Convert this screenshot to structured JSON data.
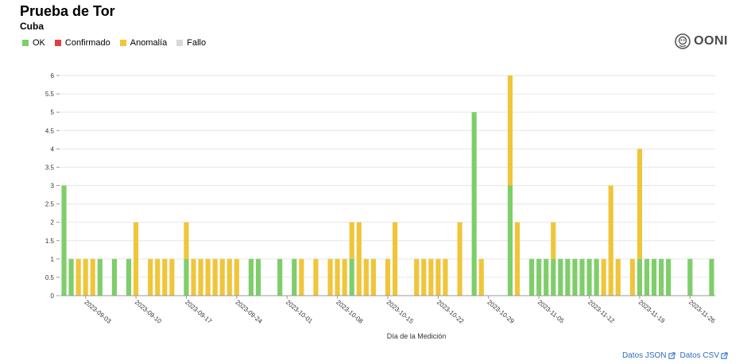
{
  "header": {
    "title": "Prueba de Tor",
    "subtitle": "Cuba"
  },
  "legend": [
    {
      "label": "OK",
      "color": "#7ece6a"
    },
    {
      "label": "Confirmado",
      "color": "#e0403c"
    },
    {
      "label": "Anomalía",
      "color": "#f0c53a"
    },
    {
      "label": "Fallo",
      "color": "#d8d8d8"
    }
  ],
  "logo": {
    "text": "OONI",
    "icon": "ooni-logo-icon"
  },
  "footer": {
    "json_link": "Datos JSON",
    "csv_link": "Datos CSV",
    "icon": "external-link-icon"
  },
  "chart_data": {
    "type": "bar",
    "stacked": true,
    "xlabel": "Día de la Medición",
    "ylabel": "",
    "ylim": [
      0,
      6
    ],
    "yticks": [
      0,
      0.5,
      1,
      1.5,
      2,
      2.5,
      3,
      3.5,
      4,
      4.5,
      5,
      5.5,
      6
    ],
    "grid": true,
    "x_start": "2023-08-31",
    "x_tick_labels": [
      "2023-09-03",
      "2023-09-10",
      "2023-09-17",
      "2023-09-24",
      "2023-10-01",
      "2023-10-08",
      "2023-10-15",
      "2023-10-22",
      "2023-10-29",
      "2023-11-05",
      "2023-11-12",
      "2023-11-19",
      "2023-11-26"
    ],
    "series": [
      {
        "name": "OK",
        "color": "#7ece6a",
        "values": [
          3,
          1,
          0,
          0,
          0,
          1,
          0,
          1,
          0,
          1,
          0,
          0,
          0,
          0,
          0,
          0,
          0,
          1,
          0,
          0,
          0,
          0,
          0,
          0,
          0,
          0,
          1,
          1,
          0,
          0,
          1,
          0,
          1,
          0,
          0,
          0,
          0,
          0,
          0,
          0,
          1,
          0,
          0,
          0,
          0,
          0,
          0,
          0,
          0,
          0,
          0,
          0,
          0,
          0,
          0,
          0,
          0,
          5,
          0,
          0,
          0,
          0,
          3,
          0,
          0,
          1,
          1,
          1,
          1,
          1,
          1,
          1,
          1,
          1,
          1,
          0,
          0,
          0,
          0,
          0,
          1,
          1,
          1,
          1,
          1,
          0,
          0,
          1,
          0,
          0,
          1
        ]
      },
      {
        "name": "Confirmado",
        "color": "#e0403c",
        "values": [
          0,
          0,
          0,
          0,
          0,
          0,
          0,
          0,
          0,
          0,
          0,
          0,
          0,
          0,
          0,
          0,
          0,
          0,
          0,
          0,
          0,
          0,
          0,
          0,
          0,
          0,
          0,
          0,
          0,
          0,
          0,
          0,
          0,
          0,
          0,
          0,
          0,
          0,
          0,
          0,
          0,
          0,
          0,
          0,
          0,
          0,
          0,
          0,
          0,
          0,
          0,
          0,
          0,
          0,
          0,
          0,
          0,
          0,
          0,
          0,
          0,
          0,
          0,
          0,
          0,
          0,
          0,
          0,
          0,
          0,
          0,
          0,
          0,
          0,
          0,
          0,
          0,
          0,
          0,
          0,
          0,
          0,
          0,
          0,
          0,
          0,
          0,
          0,
          0,
          0,
          0
        ]
      },
      {
        "name": "Anomalía",
        "color": "#f0c53a",
        "values": [
          0,
          0,
          1,
          1,
          1,
          0,
          0,
          0,
          0,
          0,
          2,
          0,
          1,
          1,
          1,
          1,
          0,
          1,
          1,
          1,
          1,
          1,
          1,
          1,
          1,
          0,
          0,
          0,
          0,
          0,
          0,
          0,
          0,
          1,
          0,
          1,
          0,
          1,
          1,
          1,
          1,
          2,
          1,
          1,
          0,
          1,
          2,
          0,
          0,
          1,
          1,
          1,
          1,
          1,
          0,
          2,
          0,
          0,
          1,
          0,
          0,
          0,
          3,
          2,
          0,
          0,
          0,
          0,
          1,
          0,
          0,
          0,
          0,
          0,
          0,
          1,
          3,
          1,
          0,
          1,
          3,
          0,
          0,
          0,
          0,
          0,
          0,
          0,
          0,
          0,
          0
        ]
      },
      {
        "name": "Fallo",
        "color": "#d8d8d8",
        "values": [
          0,
          0,
          0,
          0,
          0,
          0,
          0,
          0,
          0,
          0,
          0,
          0,
          0,
          0,
          0,
          0,
          0,
          0,
          0,
          0,
          0,
          0,
          0,
          0,
          0,
          0,
          0,
          0,
          0,
          0,
          0,
          0,
          0,
          0,
          0,
          0,
          0,
          0,
          0,
          0,
          0,
          0,
          0,
          0,
          0,
          0,
          0,
          0,
          0,
          0,
          0,
          0,
          0,
          0,
          0,
          0,
          0,
          0,
          0,
          0,
          0,
          0,
          0,
          0,
          0,
          0,
          0,
          0,
          0,
          0,
          0,
          0,
          0,
          0,
          0,
          0,
          0,
          0,
          0,
          0,
          0,
          0,
          0,
          0,
          0,
          0,
          0,
          0,
          0,
          0,
          0
        ]
      }
    ]
  }
}
